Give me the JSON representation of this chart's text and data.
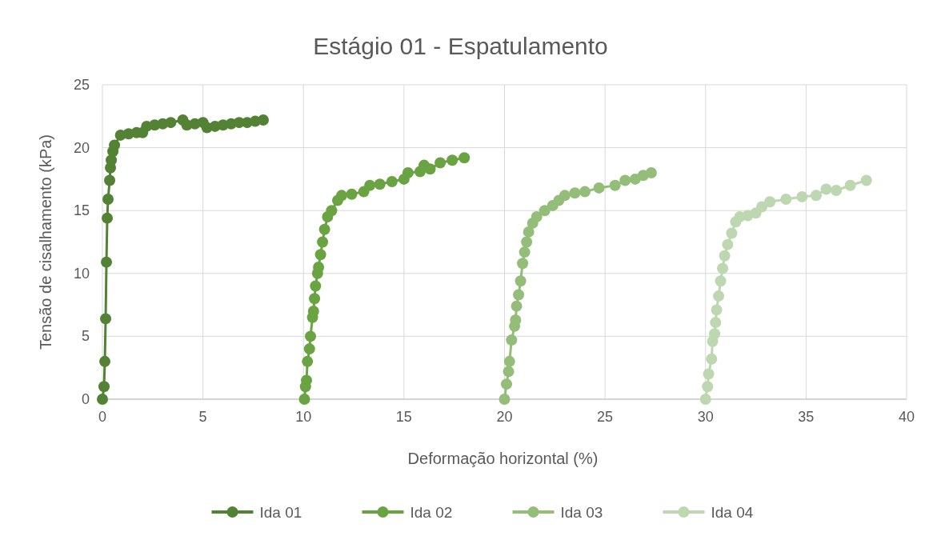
{
  "chart_data": {
    "type": "line",
    "title": "Estágio 01 - Espatulamento",
    "xlabel": "Deformação horizontal (%)",
    "ylabel": "Tensão de cisalhamento (kPa)",
    "xlim": [
      0,
      40
    ],
    "xticks": [
      0,
      5,
      10,
      15,
      20,
      25,
      30,
      35,
      40
    ],
    "ylim": [
      0,
      25
    ],
    "yticks": [
      0,
      5,
      10,
      15,
      20,
      25
    ],
    "grid": true,
    "legend": "bottom",
    "marker": "circle",
    "line_style": "solid",
    "series": [
      {
        "name": "Ida 01",
        "color": "#548235",
        "x": [
          0,
          0.08,
          0.12,
          0.16,
          0.2,
          0.24,
          0.28,
          0.36,
          0.4,
          0.44,
          0.52,
          0.6,
          0.9,
          1.3,
          1.7,
          2.0,
          2.2,
          2.6,
          3.0,
          3.4,
          4.0,
          4.2,
          4.6,
          5.0,
          5.2,
          5.6,
          6.0,
          6.4,
          6.8,
          7.2,
          7.6,
          8.0
        ],
        "values": [
          0,
          1.0,
          3.0,
          6.4,
          10.9,
          14.4,
          15.9,
          17.4,
          18.4,
          19.0,
          19.7,
          20.2,
          21.0,
          21.1,
          21.2,
          21.2,
          21.7,
          21.8,
          21.9,
          22.0,
          22.2,
          21.8,
          21.9,
          22.0,
          21.6,
          21.7,
          21.8,
          21.9,
          22.0,
          22.0,
          22.1,
          22.2
        ]
      },
      {
        "name": "Ida 02",
        "color": "#6aa442",
        "x": [
          10.05,
          10.1,
          10.15,
          10.2,
          10.3,
          10.35,
          10.45,
          10.5,
          10.55,
          10.6,
          10.7,
          10.75,
          10.85,
          10.95,
          11.05,
          11.2,
          11.4,
          11.7,
          11.9,
          12.4,
          13.0,
          13.3,
          13.8,
          14.4,
          15.0,
          15.2,
          15.8,
          16.0,
          16.3,
          16.8,
          17.4,
          18.0
        ],
        "values": [
          0,
          1.0,
          1.5,
          3.0,
          4.0,
          5.0,
          6.5,
          7.0,
          8.0,
          9.0,
          10.0,
          10.5,
          11.5,
          12.5,
          13.5,
          14.5,
          15.0,
          15.8,
          16.2,
          16.3,
          16.5,
          17.0,
          17.1,
          17.3,
          17.5,
          18.0,
          18.1,
          18.6,
          18.3,
          18.8,
          19.0,
          19.2
        ]
      },
      {
        "name": "Ida 03",
        "color": "#93bd78",
        "x": [
          20.0,
          20.1,
          20.2,
          20.25,
          20.35,
          20.5,
          20.55,
          20.6,
          20.7,
          20.8,
          20.9,
          21.0,
          21.1,
          21.2,
          21.4,
          21.6,
          22.0,
          22.4,
          22.7,
          23.0,
          23.5,
          24.0,
          24.7,
          25.5,
          26.0,
          26.5,
          26.9,
          27.3
        ],
        "values": [
          0,
          1.2,
          2.2,
          3.0,
          4.7,
          5.8,
          6.3,
          7.4,
          8.3,
          9.4,
          10.8,
          11.7,
          12.5,
          13.3,
          14.0,
          14.5,
          15.0,
          15.4,
          15.8,
          16.2,
          16.4,
          16.5,
          16.8,
          17.0,
          17.4,
          17.5,
          17.8,
          18.0
        ]
      },
      {
        "name": "Ida 04",
        "color": "#bdd7b0",
        "x": [
          30.0,
          30.1,
          30.15,
          30.3,
          30.35,
          30.45,
          30.5,
          30.55,
          30.65,
          30.75,
          30.85,
          30.95,
          31.1,
          31.3,
          31.5,
          31.7,
          32.1,
          32.5,
          32.8,
          33.2,
          34.0,
          34.8,
          35.5,
          36.0,
          36.5,
          37.2,
          38.0
        ],
        "values": [
          0,
          1.0,
          2.0,
          3.2,
          4.6,
          5.2,
          6.1,
          7.1,
          8.2,
          9.4,
          10.4,
          11.4,
          12.3,
          13.2,
          14.1,
          14.5,
          14.6,
          14.8,
          15.3,
          15.7,
          15.9,
          16.1,
          16.2,
          16.7,
          16.6,
          17.0,
          17.4
        ]
      }
    ]
  }
}
